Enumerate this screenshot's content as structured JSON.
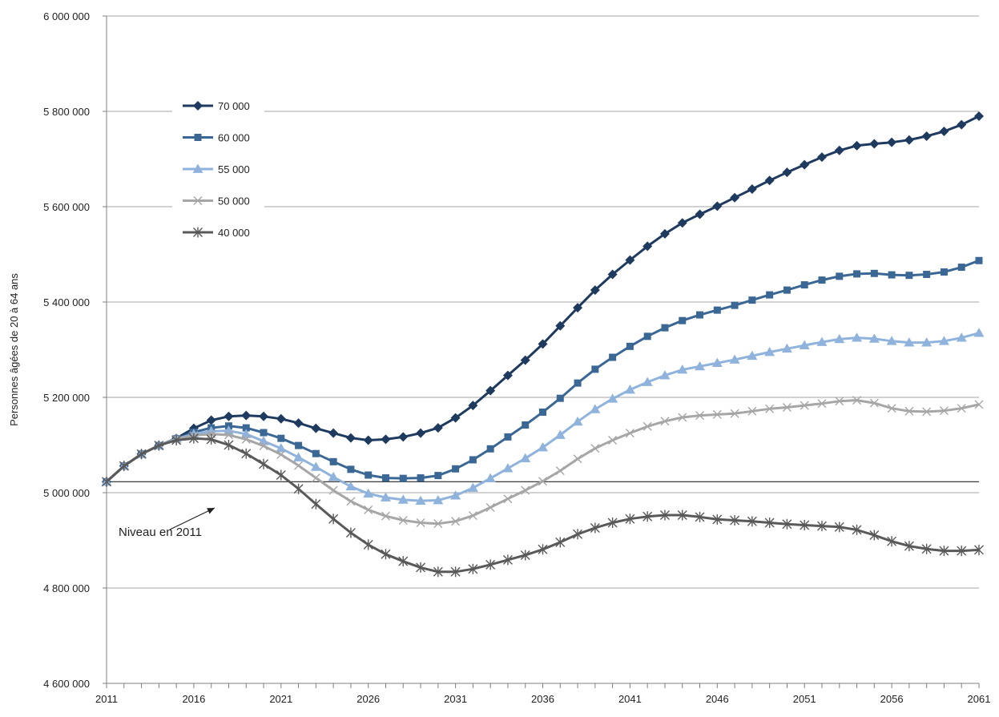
{
  "chart_data": {
    "type": "line",
    "title": "",
    "xlabel": "",
    "ylabel": "Personnes âgées de 20 à 64 ans",
    "xlim": [
      2011,
      2061
    ],
    "ylim": [
      4600000,
      6000000
    ],
    "x_tick_values": [
      2011,
      2016,
      2021,
      2026,
      2031,
      2036,
      2041,
      2046,
      2051,
      2056,
      2061
    ],
    "x_tick_labels": [
      "2011",
      "2016",
      "2021",
      "2026",
      "2031",
      "2036",
      "2041",
      "2046",
      "2051",
      "2056",
      "2061"
    ],
    "y_tick_values": [
      4600000,
      4800000,
      5000000,
      5200000,
      5400000,
      5600000,
      5800000,
      6000000
    ],
    "y_tick_labels": [
      "4 600 000",
      "4 800 000",
      "5 000 000",
      "5 200 000",
      "5 400 000",
      "5 600 000",
      "5 800 000",
      "6 000 000"
    ],
    "grid": "horizontal",
    "legend_position": "top-left",
    "reference_line": {
      "value": 5023000,
      "label": "Niveau en 2011"
    },
    "x": [
      2011,
      2012,
      2013,
      2014,
      2015,
      2016,
      2017,
      2018,
      2019,
      2020,
      2021,
      2022,
      2023,
      2024,
      2025,
      2026,
      2027,
      2028,
      2029,
      2030,
      2031,
      2032,
      2033,
      2034,
      2035,
      2036,
      2037,
      2038,
      2039,
      2040,
      2041,
      2042,
      2043,
      2044,
      2045,
      2046,
      2047,
      2048,
      2049,
      2050,
      2051,
      2052,
      2053,
      2054,
      2055,
      2056,
      2057,
      2058,
      2059,
      2060,
      2061
    ],
    "series": [
      {
        "name": "70 000",
        "color": "#1f3a5f",
        "marker": "diamond",
        "values": [
          5023000,
          5056000,
          5081000,
          5099000,
          5114000,
          5135000,
          5152000,
          5160000,
          5162000,
          5160000,
          5155000,
          5146000,
          5135000,
          5125000,
          5115000,
          5110000,
          5112000,
          5117000,
          5125000,
          5136000,
          5157000,
          5183000,
          5214000,
          5246000,
          5278000,
          5312000,
          5350000,
          5388000,
          5425000,
          5458000,
          5488000,
          5517000,
          5543000,
          5566000,
          5584000,
          5601000,
          5619000,
          5637000,
          5655000,
          5672000,
          5688000,
          5704000,
          5718000,
          5728000,
          5732000,
          5735000,
          5740000,
          5748000,
          5758000,
          5772000,
          5790000
        ]
      },
      {
        "name": "60 000",
        "color": "#3b6795",
        "marker": "square",
        "values": [
          5023000,
          5056000,
          5081000,
          5099000,
          5113000,
          5127000,
          5136000,
          5140000,
          5136000,
          5126000,
          5114000,
          5099000,
          5082000,
          5065000,
          5049000,
          5037000,
          5031000,
          5030000,
          5031000,
          5036000,
          5050000,
          5069000,
          5092000,
          5117000,
          5142000,
          5169000,
          5198000,
          5230000,
          5259000,
          5284000,
          5307000,
          5328000,
          5346000,
          5361000,
          5373000,
          5383000,
          5393000,
          5404000,
          5415000,
          5425000,
          5436000,
          5446000,
          5454000,
          5459000,
          5460000,
          5457000,
          5456000,
          5458000,
          5463000,
          5473000,
          5487000
        ]
      },
      {
        "name": "55 000",
        "color": "#8fb3dc",
        "marker": "triangle",
        "values": [
          5023000,
          5056000,
          5081000,
          5099000,
          5113000,
          5123000,
          5129000,
          5130000,
          5123000,
          5108000,
          5093000,
          5074000,
          5054000,
          5033000,
          5013000,
          4998000,
          4990000,
          4985000,
          4983000,
          4984000,
          4994000,
          5010000,
          5030000,
          5051000,
          5072000,
          5095000,
          5121000,
          5149000,
          5175000,
          5197000,
          5216000,
          5232000,
          5246000,
          5258000,
          5265000,
          5272000,
          5279000,
          5287000,
          5295000,
          5302000,
          5309000,
          5316000,
          5322000,
          5325000,
          5323000,
          5318000,
          5315000,
          5315000,
          5318000,
          5325000,
          5335000
        ]
      },
      {
        "name": "50 000",
        "color": "#a6a6a6",
        "marker": "x",
        "values": [
          5023000,
          5056000,
          5081000,
          5099000,
          5112000,
          5120000,
          5123000,
          5121000,
          5112000,
          5098000,
          5080000,
          5057000,
          5031000,
          5005000,
          4982000,
          4964000,
          4951000,
          4942000,
          4937000,
          4935000,
          4940000,
          4952000,
          4969000,
          4987000,
          5005000,
          5024000,
          5046000,
          5071000,
          5093000,
          5110000,
          5125000,
          5139000,
          5150000,
          5158000,
          5162000,
          5164000,
          5166000,
          5171000,
          5176000,
          5179000,
          5183000,
          5187000,
          5192000,
          5194000,
          5188000,
          5177000,
          5171000,
          5170000,
          5172000,
          5177000,
          5185000
        ]
      },
      {
        "name": "40 000",
        "color": "#595959",
        "marker": "star",
        "values": [
          5023000,
          5056000,
          5081000,
          5099000,
          5110000,
          5114000,
          5112000,
          5100000,
          5082000,
          5060000,
          5037000,
          5008000,
          4976000,
          4945000,
          4916000,
          4891000,
          4871000,
          4856000,
          4843000,
          4834000,
          4834000,
          4840000,
          4849000,
          4859000,
          4869000,
          4881000,
          4896000,
          4913000,
          4926000,
          4937000,
          4945000,
          4950000,
          4953000,
          4953000,
          4949000,
          4944000,
          4942000,
          4940000,
          4937000,
          4934000,
          4932000,
          4930000,
          4928000,
          4922000,
          4911000,
          4898000,
          4888000,
          4882000,
          4878000,
          4878000,
          4880000
        ]
      }
    ]
  }
}
